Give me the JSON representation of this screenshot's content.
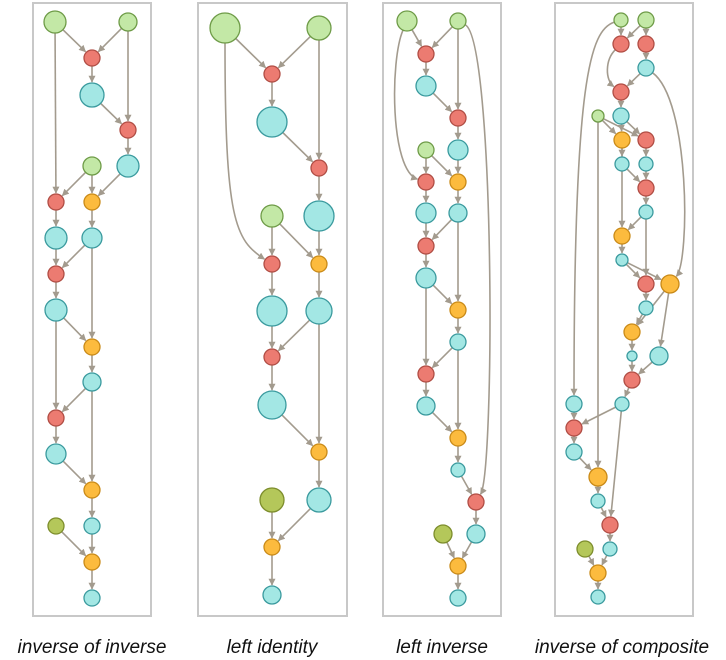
{
  "colors": {
    "green": "#c3e8a6",
    "green_stroke": "#6e9b47",
    "olive": "#b4c75a",
    "olive_stroke": "#7d8d2c",
    "red": "#ec7b71",
    "red_stroke": "#b04d44",
    "cyan": "#a3e7e4",
    "cyan_stroke": "#3a9a9e",
    "orange": "#fcbb3e",
    "orange_stroke": "#c98a18",
    "edge": "#a39b8e",
    "frame": "#c8c8c8"
  },
  "panels": [
    {
      "id": "inverse-of-inverse",
      "caption": "inverse of inverse"
    },
    {
      "id": "left-identity",
      "caption": "left identity"
    },
    {
      "id": "left-inverse",
      "caption": "left inverse"
    },
    {
      "id": "inverse-of-composite",
      "caption": "inverse of composite"
    }
  ]
}
